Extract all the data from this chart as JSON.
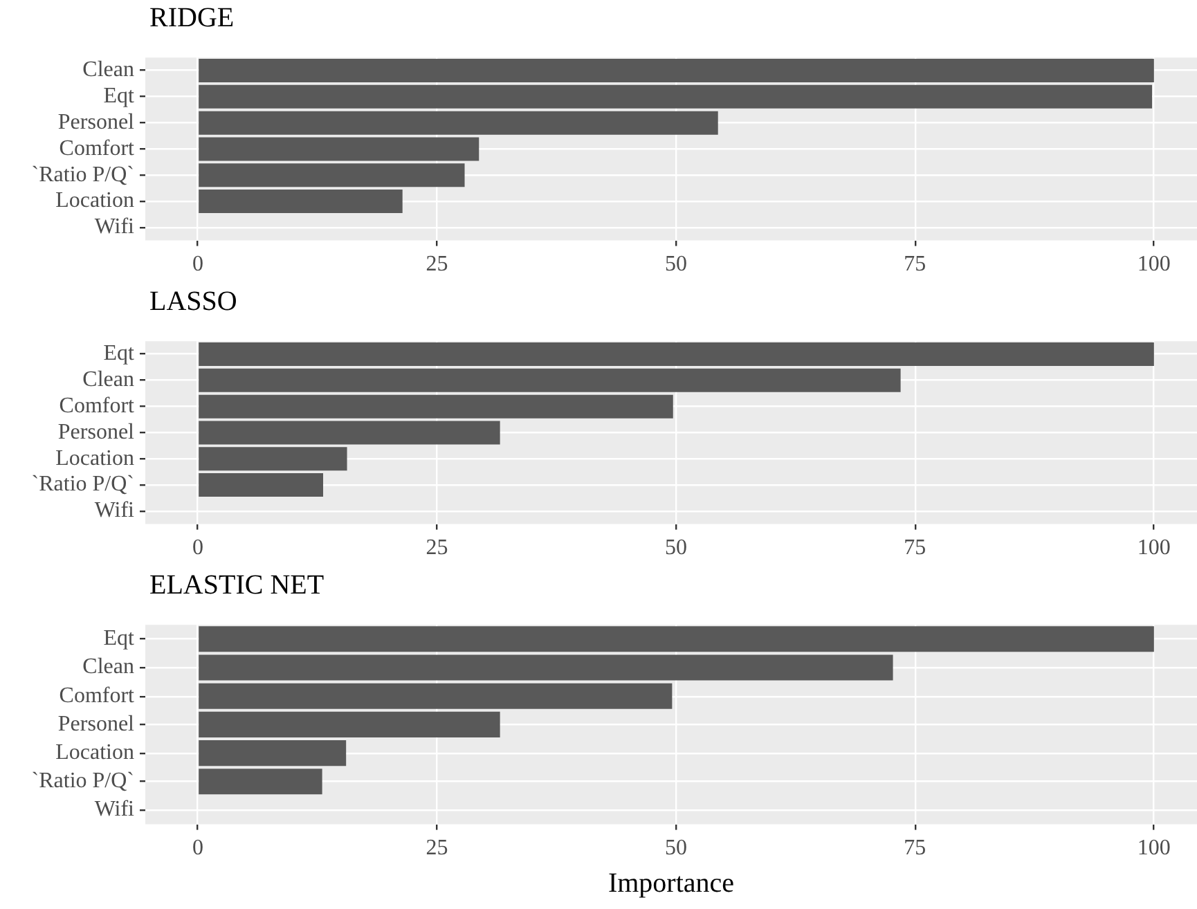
{
  "chart_data": [
    {
      "type": "bar",
      "title": "RIDGE",
      "orientation": "horizontal",
      "categories": [
        "Clean",
        "Eqt",
        "Personel",
        "Comfort",
        "`Ratio P/Q`",
        "Location",
        "Wifi"
      ],
      "values": [
        100,
        99.8,
        54.4,
        29.4,
        27.9,
        21.4,
        0
      ],
      "color": "#595959",
      "xlim": [
        -5.5,
        104.5
      ],
      "xticks": [
        0,
        25,
        50,
        75,
        100
      ],
      "grid": true
    },
    {
      "type": "bar",
      "title": "LASSO",
      "orientation": "horizontal",
      "categories": [
        "Eqt",
        "Clean",
        "Comfort",
        "Personel",
        "Location",
        "`Ratio P/Q`",
        "Wifi"
      ],
      "values": [
        100,
        73.5,
        49.7,
        31.6,
        15.6,
        13.1,
        0
      ],
      "color": "#595959",
      "xlim": [
        -5.5,
        104.5
      ],
      "xticks": [
        0,
        25,
        50,
        75,
        100
      ],
      "grid": true
    },
    {
      "type": "bar",
      "title": "ELASTIC NET",
      "orientation": "horizontal",
      "xlabel": "Importance",
      "categories": [
        "Eqt",
        "Clean",
        "Comfort",
        "Personel",
        "Location",
        "`Ratio P/Q`",
        "Wifi"
      ],
      "values": [
        100,
        72.7,
        49.6,
        31.6,
        15.5,
        13,
        0
      ],
      "color": "#595959",
      "xlim": [
        -5.5,
        104.5
      ],
      "xticks": [
        0,
        25,
        50,
        75,
        100
      ],
      "grid": true
    }
  ]
}
